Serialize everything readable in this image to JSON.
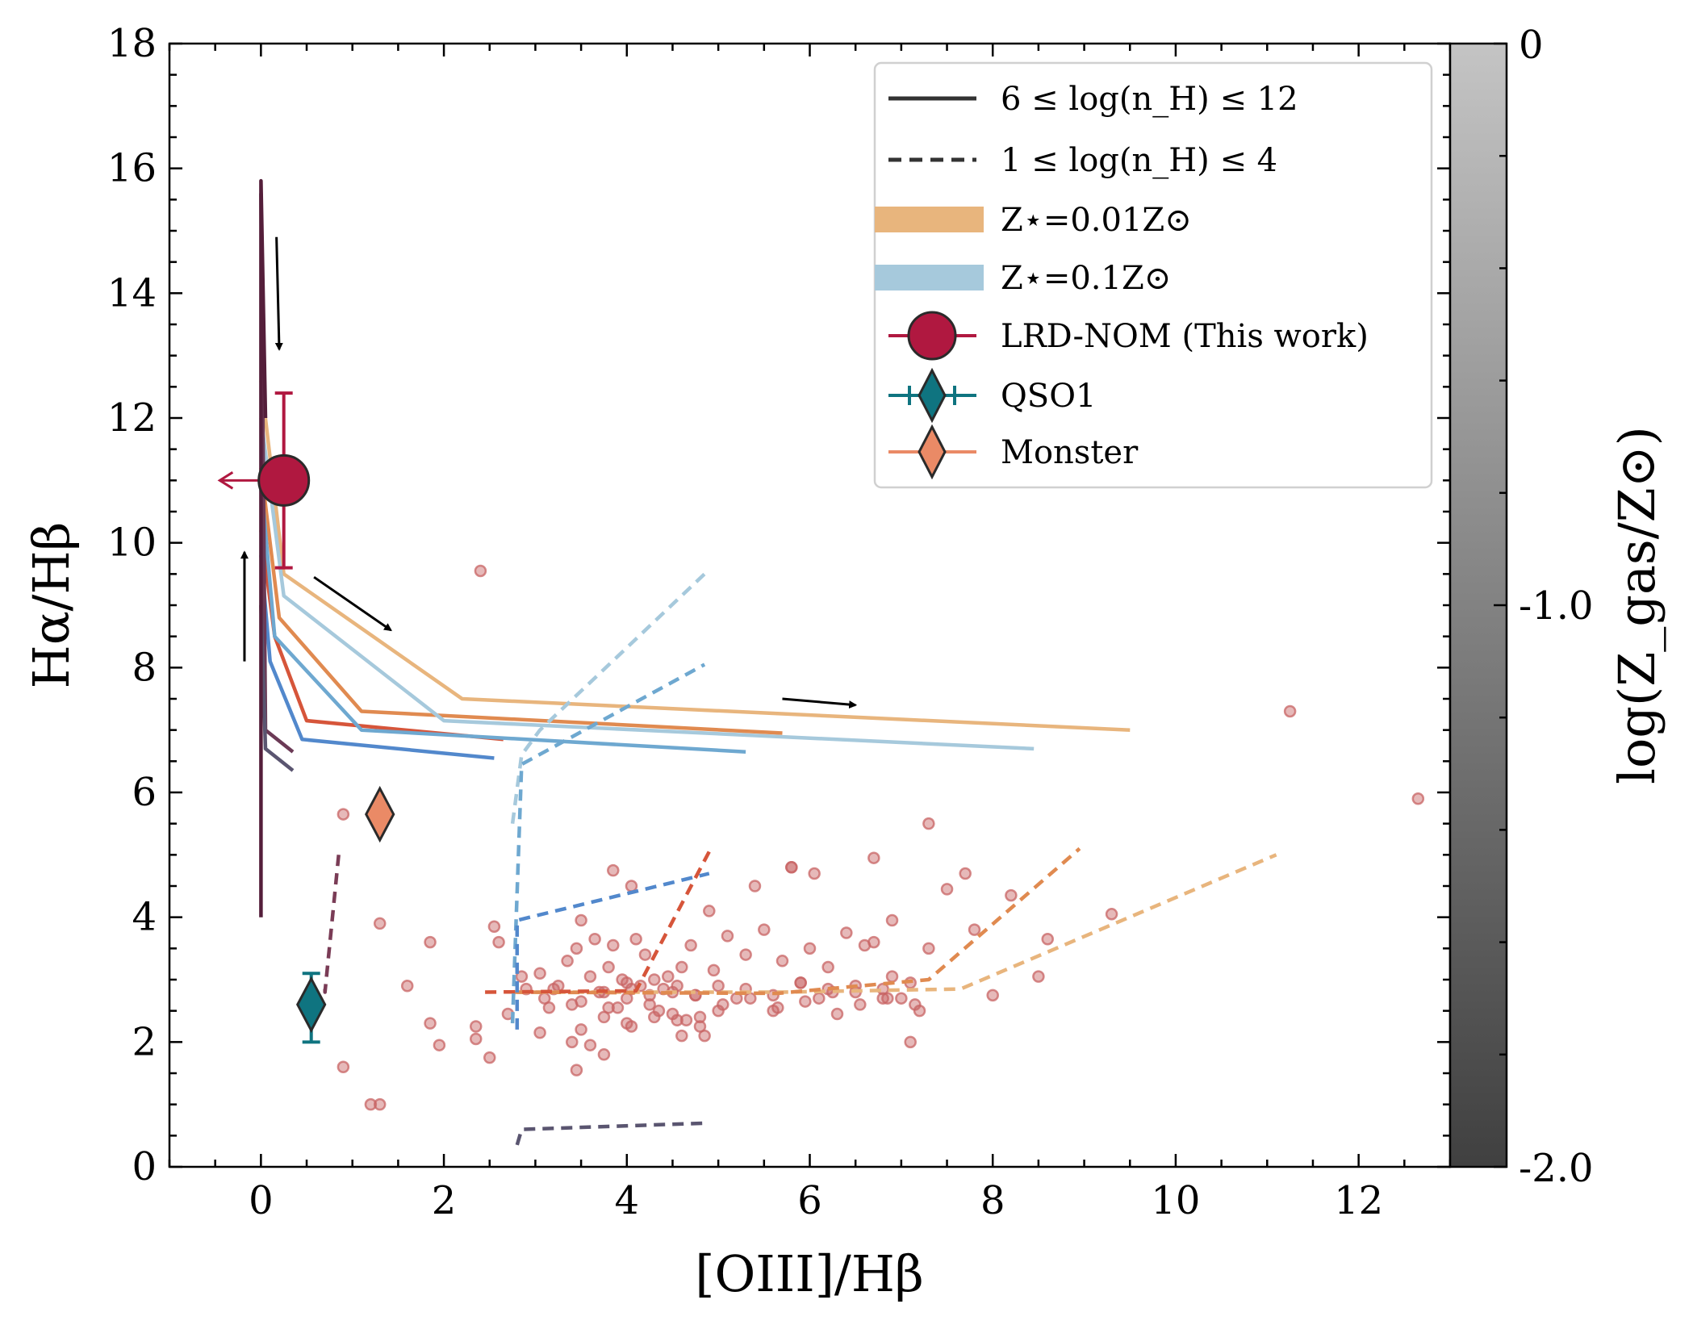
{
  "chart_data": {
    "type": "line",
    "xlabel": "[OIII]/Hβ",
    "ylabel": "Hα/Hβ",
    "xlim": [
      -1,
      13
    ],
    "ylim": [
      0,
      18
    ],
    "xticks": [
      0,
      2,
      4,
      6,
      8,
      10,
      12
    ],
    "yticks": [
      0,
      2,
      4,
      6,
      8,
      10,
      12,
      14,
      16,
      18
    ],
    "grid": false,
    "legend_placement": "top-right",
    "legend": [
      {
        "label": "6 ≤ log(n_H) ≤ 12",
        "style": "solid",
        "color": "#333333"
      },
      {
        "label": "1 ≤ log(n_H) ≤ 4",
        "style": "dashed",
        "color": "#333333"
      },
      {
        "label": "Z⋆=0.01Z⊙",
        "style": "band",
        "color": "#e8b57d"
      },
      {
        "label": "Z⋆=0.1Z⊙",
        "style": "band",
        "color": "#a6c9dc"
      },
      {
        "label": "LRD-NOM (This work)",
        "style": "circle-errorbar",
        "color": "#b01840"
      },
      {
        "label": "QSO1",
        "style": "diamond-errorbar",
        "color": "#0f7480"
      },
      {
        "label": "Monster",
        "style": "diamond-errorbar",
        "color": "#ea8a66"
      }
    ],
    "colorbar": {
      "label": "log(Z_gas/Z⊙)",
      "range": [
        -2.0,
        0
      ],
      "ticks": [
        "0",
        "-1.0",
        "-2.0"
      ],
      "color_top": "#c4c4c4",
      "color_bottom": "#404040"
    },
    "models": [
      {
        "style": "solid",
        "color": "#e8b57d",
        "x": [
          0,
          0.25,
          2.2,
          9.5
        ],
        "y": [
          12.6,
          9.5,
          7.5,
          7.0
        ]
      },
      {
        "style": "solid",
        "color": "#e08a50",
        "x": [
          0,
          0.2,
          1.1,
          5.7
        ],
        "y": [
          11.2,
          8.8,
          7.3,
          6.95
        ]
      },
      {
        "style": "solid",
        "color": "#d6553a",
        "x": [
          0,
          0.15,
          0.5,
          2.65
        ],
        "y": [
          10.2,
          8.5,
          7.15,
          6.85
        ]
      },
      {
        "style": "solid",
        "color": "#a6c9dc",
        "x": [
          0,
          0.25,
          2.0,
          8.45
        ],
        "y": [
          12.0,
          9.15,
          7.15,
          6.7
        ]
      },
      {
        "style": "solid",
        "color": "#6ea8d0",
        "x": [
          0,
          0.15,
          1.1,
          5.3
        ],
        "y": [
          11.0,
          8.5,
          7.0,
          6.65
        ]
      },
      {
        "style": "solid",
        "color": "#5288cc",
        "x": [
          0,
          0.1,
          0.45,
          2.55
        ],
        "y": [
          9.8,
          8.1,
          6.85,
          6.55
        ]
      },
      {
        "style": "solid",
        "color": "#6b3a56",
        "x": [
          0,
          0.05,
          0.35
        ],
        "y": [
          15.6,
          7.0,
          6.65
        ]
      },
      {
        "style": "solid",
        "color": "#5a5570",
        "x": [
          0,
          0.05,
          0.35
        ],
        "y": [
          9.0,
          6.7,
          6.35
        ]
      },
      {
        "style": "solid",
        "color": "#541e3a",
        "x": [
          0,
          0,
          0.05
        ],
        "y": [
          4.0,
          15.8,
          12.0
        ]
      },
      {
        "style": "dashed",
        "color": "#e8b57d",
        "x": [
          2.8,
          5.7,
          7.65,
          11.1
        ],
        "y": [
          2.8,
          2.8,
          2.85,
          5.0
        ]
      },
      {
        "style": "dashed",
        "color": "#e08a50",
        "x": [
          2.75,
          5.65,
          7.3,
          8.95
        ],
        "y": [
          2.8,
          2.78,
          3.0,
          5.1
        ]
      },
      {
        "style": "dashed",
        "color": "#d6553a",
        "x": [
          2.45,
          4.1,
          4.9
        ],
        "y": [
          2.8,
          2.82,
          5.05
        ]
      },
      {
        "style": "dashed",
        "color": "#a6c9dc",
        "x": [
          2.75,
          2.85,
          3.05,
          4.85
        ],
        "y": [
          5.5,
          6.6,
          7.0,
          9.5
        ]
      },
      {
        "style": "dashed",
        "color": "#6ea8d0",
        "x": [
          2.75,
          2.85,
          4.85
        ],
        "y": [
          2.3,
          6.45,
          8.05
        ]
      },
      {
        "style": "dashed",
        "color": "#5288cc",
        "x": [
          2.8,
          2.8,
          4.9
        ],
        "y": [
          2.2,
          3.95,
          4.7
        ]
      },
      {
        "style": "dashed",
        "color": "#7a3c56",
        "x": [
          0.7,
          0.7,
          0.85
        ],
        "y": [
          2.85,
          2.8,
          5.0
        ]
      },
      {
        "style": "dashed",
        "color": "#5a5570",
        "x": [
          2.8,
          2.85,
          4.85
        ],
        "y": [
          0.35,
          0.6,
          0.7
        ]
      }
    ],
    "arrows": [
      {
        "x": [
          0.17,
          0.2
        ],
        "y": [
          14.9,
          13.1
        ]
      },
      {
        "x": [
          -0.18,
          -0.18
        ],
        "y": [
          8.1,
          9.85
        ]
      },
      {
        "x": [
          0.58,
          1.42
        ],
        "y": [
          9.45,
          8.6
        ]
      },
      {
        "x": [
          5.7,
          6.5
        ],
        "y": [
          7.5,
          7.4
        ]
      }
    ],
    "points": {
      "LRD-NOM": {
        "x": 0.25,
        "y": 11.0,
        "yerr": [
          1.4,
          1.4
        ],
        "xupper_limit": true,
        "color": "#b01840"
      },
      "QSO1": {
        "x": 0.55,
        "y": 2.6,
        "xerr": [
          0.15,
          0.15
        ],
        "yerr": [
          0.6,
          0.5
        ],
        "color": "#0f7480"
      },
      "Monster": {
        "x": 1.3,
        "y": 5.65,
        "color": "#ea8a66"
      }
    },
    "comparison_sample": {
      "color": "#c86464",
      "x": [
        2.4,
        11.25,
        12.65,
        0.9,
        1.85,
        0.9,
        1.3,
        1.6,
        2.35,
        2.55,
        2.7,
        2.9,
        3.05,
        3.1,
        3.15,
        3.25,
        3.35,
        3.4,
        3.45,
        3.5,
        3.6,
        3.65,
        3.7,
        3.75,
        3.8,
        3.85,
        3.9,
        3.95,
        4.0,
        4.05,
        4.1,
        4.15,
        4.2,
        4.25,
        4.3,
        4.35,
        4.4,
        4.45,
        4.5,
        4.55,
        4.6,
        4.65,
        4.7,
        4.75,
        4.8,
        4.85,
        4.9,
        4.95,
        5.0,
        5.1,
        5.2,
        5.3,
        5.4,
        5.5,
        5.6,
        5.7,
        5.8,
        5.9,
        6.0,
        6.1,
        6.2,
        6.3,
        6.4,
        6.5,
        6.6,
        6.7,
        6.8,
        6.9,
        7.0,
        7.1,
        7.2,
        7.3,
        7.5,
        7.7,
        7.8,
        8.0,
        8.2,
        8.5,
        8.6,
        9.3,
        3.05,
        3.4,
        3.6,
        3.8,
        4.05,
        4.3,
        4.55,
        4.8,
        5.05,
        5.35,
        5.65,
        5.95,
        6.25,
        6.55,
        6.85,
        7.15,
        3.2,
        3.5,
        3.75,
        4.0,
        4.25,
        4.5,
        4.75,
        5.0,
        5.3,
        5.6,
        5.9,
        6.2,
        6.5,
        6.8,
        7.1,
        1.2,
        1.85,
        2.5,
        3.45,
        3.75,
        4.0,
        4.6,
        1.95,
        3.85,
        4.05,
        5.8,
        6.05,
        2.35,
        3.5,
        1.3,
        2.85,
        7.3,
        6.7,
        2.6,
        6.9
      ],
      "y": [
        9.55,
        7.3,
        5.9,
        5.65,
        3.6,
        1.6,
        1.0,
        2.9,
        2.25,
        3.85,
        2.45,
        2.85,
        3.1,
        2.7,
        2.55,
        2.9,
        3.3,
        2.6,
        3.5,
        2.2,
        3.05,
        3.65,
        2.8,
        2.4,
        3.2,
        3.55,
        2.55,
        3.0,
        2.7,
        2.25,
        3.65,
        2.9,
        3.4,
        2.6,
        3.0,
        2.5,
        2.85,
        3.05,
        2.45,
        2.9,
        3.2,
        2.35,
        3.55,
        2.75,
        2.4,
        2.1,
        4.1,
        3.15,
        2.5,
        3.7,
        2.7,
        3.4,
        4.5,
        3.8,
        2.5,
        3.3,
        4.8,
        2.95,
        3.5,
        2.7,
        3.2,
        2.45,
        3.75,
        2.9,
        3.55,
        3.6,
        2.85,
        3.05,
        2.7,
        2.0,
        2.5,
        5.5,
        4.45,
        4.7,
        3.8,
        2.75,
        4.35,
        3.05,
        3.65,
        4.05,
        2.15,
        2.0,
        1.95,
        2.55,
        2.85,
        2.4,
        2.35,
        2.25,
        2.6,
        2.7,
        2.55,
        2.65,
        2.8,
        2.6,
        2.7,
        2.6,
        2.85,
        2.65,
        2.8,
        2.95,
        2.75,
        2.8,
        2.75,
        2.9,
        2.85,
        2.75,
        2.95,
        2.85,
        2.8,
        2.7,
        2.95,
        1.0,
        2.3,
        1.75,
        1.55,
        1.8,
        2.3,
        2.1,
        1.95,
        4.75,
        4.5,
        4.8,
        4.7,
        2.05,
        3.95,
        3.9,
        3.05,
        3.5,
        4.95,
        3.6,
        3.95
      ]
    }
  }
}
